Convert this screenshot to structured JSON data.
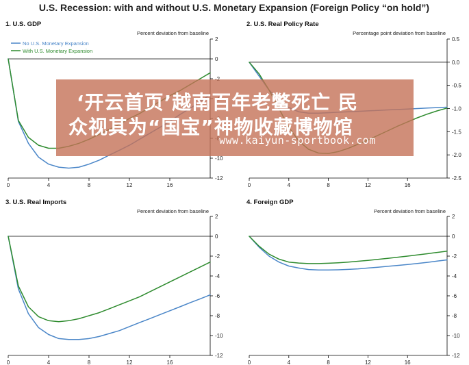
{
  "title": "U.S. Recession: with and without U.S. Monetary Expansion (Foreign Policy “on hold”)",
  "legend": [
    "No U.S. Monetary Expansion",
    "With U.S. Monetary Expansion"
  ],
  "colors": {
    "no_expansion": "#4a86c8",
    "with_expansion": "#2e8b2e"
  },
  "chart_data": [
    {
      "type": "line",
      "title": "1. U.S. GDP",
      "ylabel": "Percent deviation from baseline",
      "xlim": [
        0,
        20
      ],
      "ylim": [
        -12,
        2
      ],
      "xticks": [
        0,
        4,
        8,
        12,
        16
      ],
      "yticks": [
        2,
        0,
        -2,
        -4,
        -6,
        -8,
        -10,
        -12
      ],
      "legend": true,
      "series": [
        {
          "name": "No U.S. Monetary Expansion",
          "color": "#4a86c8",
          "x": [
            0,
            1,
            2,
            3,
            4,
            5,
            6,
            7,
            8,
            9,
            10,
            11,
            12,
            13,
            14,
            15,
            16,
            17,
            18,
            19,
            20
          ],
          "y": [
            0,
            -6.3,
            -8.5,
            -9.9,
            -10.6,
            -10.9,
            -11.0,
            -10.9,
            -10.6,
            -10.2,
            -9.7,
            -9.2,
            -8.7,
            -8.1,
            -7.5,
            -6.9,
            -6.3,
            -5.6,
            -5.0,
            -4.3,
            -3.6
          ]
        },
        {
          "name": "With U.S. Monetary Expansion",
          "color": "#2e8b2e",
          "x": [
            0,
            1,
            2,
            3,
            4,
            5,
            6,
            7,
            8,
            9,
            10,
            11,
            12,
            13,
            14,
            15,
            16,
            17,
            18,
            19,
            20
          ],
          "y": [
            0,
            -6.2,
            -7.9,
            -8.7,
            -9.0,
            -9.0,
            -8.8,
            -8.5,
            -8.1,
            -7.6,
            -7.1,
            -6.6,
            -6.0,
            -5.5,
            -4.9,
            -4.3,
            -3.7,
            -3.2,
            -2.6,
            -2.0,
            -1.4
          ]
        }
      ]
    },
    {
      "type": "line",
      "title": "2. U.S. Real Policy Rate",
      "ylabel": "Percentage point deviation from baseline",
      "xlim": [
        0,
        20
      ],
      "ylim": [
        -2.5,
        0.5
      ],
      "xticks": [
        0,
        4,
        8,
        12,
        16
      ],
      "yticks": [
        0.5,
        0.0,
        -0.5,
        -1.0,
        -1.5,
        -2.0,
        -2.5
      ],
      "yticklabels": [
        "0.5",
        "0.0",
        "-0.5",
        "-1.0",
        "-1.5",
        "-2.0",
        "-2.5"
      ],
      "series": [
        {
          "name": "No U.S. Monetary Expansion",
          "color": "#4a86c8",
          "x": [
            0,
            1,
            2,
            3,
            4,
            5,
            6,
            7,
            8,
            9,
            10,
            11,
            12,
            13,
            14,
            15,
            16,
            17,
            18,
            19,
            20
          ],
          "y": [
            0,
            -0.3,
            -0.6,
            -0.82,
            -0.98,
            -1.07,
            -1.1,
            -1.1,
            -1.09,
            -1.08,
            -1.07,
            -1.06,
            -1.05,
            -1.04,
            -1.03,
            -1.02,
            -1.01,
            -1.0,
            -0.99,
            -0.98,
            -0.97
          ]
        },
        {
          "name": "With U.S. Monetary Expansion",
          "color": "#2e8b2e",
          "x": [
            0,
            1,
            2,
            3,
            4,
            5,
            6,
            7,
            8,
            9,
            10,
            11,
            12,
            13,
            14,
            15,
            16,
            17,
            18,
            19,
            20
          ],
          "y": [
            0,
            -0.25,
            -0.6,
            -1.0,
            -1.4,
            -1.7,
            -1.88,
            -1.96,
            -1.97,
            -1.93,
            -1.86,
            -1.77,
            -1.68,
            -1.58,
            -1.48,
            -1.38,
            -1.29,
            -1.2,
            -1.12,
            -1.05,
            -0.99
          ]
        }
      ]
    },
    {
      "type": "line",
      "title": "3. U.S. Real Imports",
      "ylabel": "Percent deviation from baseline",
      "xlim": [
        0,
        20
      ],
      "ylim": [
        -12,
        2
      ],
      "xticks": [
        0,
        4,
        8,
        12,
        16
      ],
      "yticks": [
        2,
        0,
        -2,
        -4,
        -6,
        -8,
        -10,
        -12
      ],
      "series": [
        {
          "name": "No U.S. Monetary Expansion",
          "color": "#4a86c8",
          "x": [
            0,
            1,
            2,
            3,
            4,
            5,
            6,
            7,
            8,
            9,
            10,
            11,
            12,
            13,
            14,
            15,
            16,
            17,
            18,
            19,
            20
          ],
          "y": [
            0,
            -5.3,
            -7.8,
            -9.2,
            -9.9,
            -10.3,
            -10.4,
            -10.4,
            -10.3,
            -10.1,
            -9.8,
            -9.5,
            -9.1,
            -8.7,
            -8.3,
            -7.9,
            -7.5,
            -7.1,
            -6.7,
            -6.3,
            -5.9
          ]
        },
        {
          "name": "With U.S. Monetary Expansion",
          "color": "#2e8b2e",
          "x": [
            0,
            1,
            2,
            3,
            4,
            5,
            6,
            7,
            8,
            9,
            10,
            11,
            12,
            13,
            14,
            15,
            16,
            17,
            18,
            19,
            20
          ],
          "y": [
            0,
            -5.0,
            -7.1,
            -8.1,
            -8.5,
            -8.6,
            -8.5,
            -8.3,
            -8.0,
            -7.7,
            -7.3,
            -6.9,
            -6.5,
            -6.1,
            -5.6,
            -5.1,
            -4.6,
            -4.1,
            -3.6,
            -3.1,
            -2.6
          ]
        }
      ]
    },
    {
      "type": "line",
      "title": "4. Foreign GDP",
      "ylabel": "Percent deviation from baseline",
      "xlim": [
        0,
        20
      ],
      "ylim": [
        -12,
        2
      ],
      "xticks": [
        0,
        4,
        8,
        12,
        16
      ],
      "yticks": [
        2,
        0,
        -2,
        -4,
        -6,
        -8,
        -10,
        -12
      ],
      "series": [
        {
          "name": "No U.S. Monetary Expansion",
          "color": "#4a86c8",
          "x": [
            0,
            1,
            2,
            3,
            4,
            5,
            6,
            7,
            8,
            9,
            10,
            11,
            12,
            13,
            14,
            15,
            16,
            17,
            18,
            19,
            20
          ],
          "y": [
            0,
            -1.1,
            -2.0,
            -2.6,
            -3.0,
            -3.2,
            -3.35,
            -3.4,
            -3.4,
            -3.38,
            -3.34,
            -3.28,
            -3.2,
            -3.12,
            -3.03,
            -2.94,
            -2.84,
            -2.74,
            -2.63,
            -2.5,
            -2.38
          ]
        },
        {
          "name": "With U.S. Monetary Expansion",
          "color": "#2e8b2e",
          "x": [
            0,
            1,
            2,
            3,
            4,
            5,
            6,
            7,
            8,
            9,
            10,
            11,
            12,
            13,
            14,
            15,
            16,
            17,
            18,
            19,
            20
          ],
          "y": [
            0,
            -1.0,
            -1.8,
            -2.3,
            -2.6,
            -2.7,
            -2.75,
            -2.75,
            -2.72,
            -2.67,
            -2.6,
            -2.52,
            -2.43,
            -2.33,
            -2.22,
            -2.11,
            -2.0,
            -1.88,
            -1.76,
            -1.63,
            -1.5
          ]
        }
      ]
    }
  ],
  "overlay": {
    "line1": "‘开云首页’越南百年老鳖死亡 民",
    "line2": "众视其为“国宝”神物收藏博物馆",
    "url": "www.kaiyun-sportbook.com"
  }
}
